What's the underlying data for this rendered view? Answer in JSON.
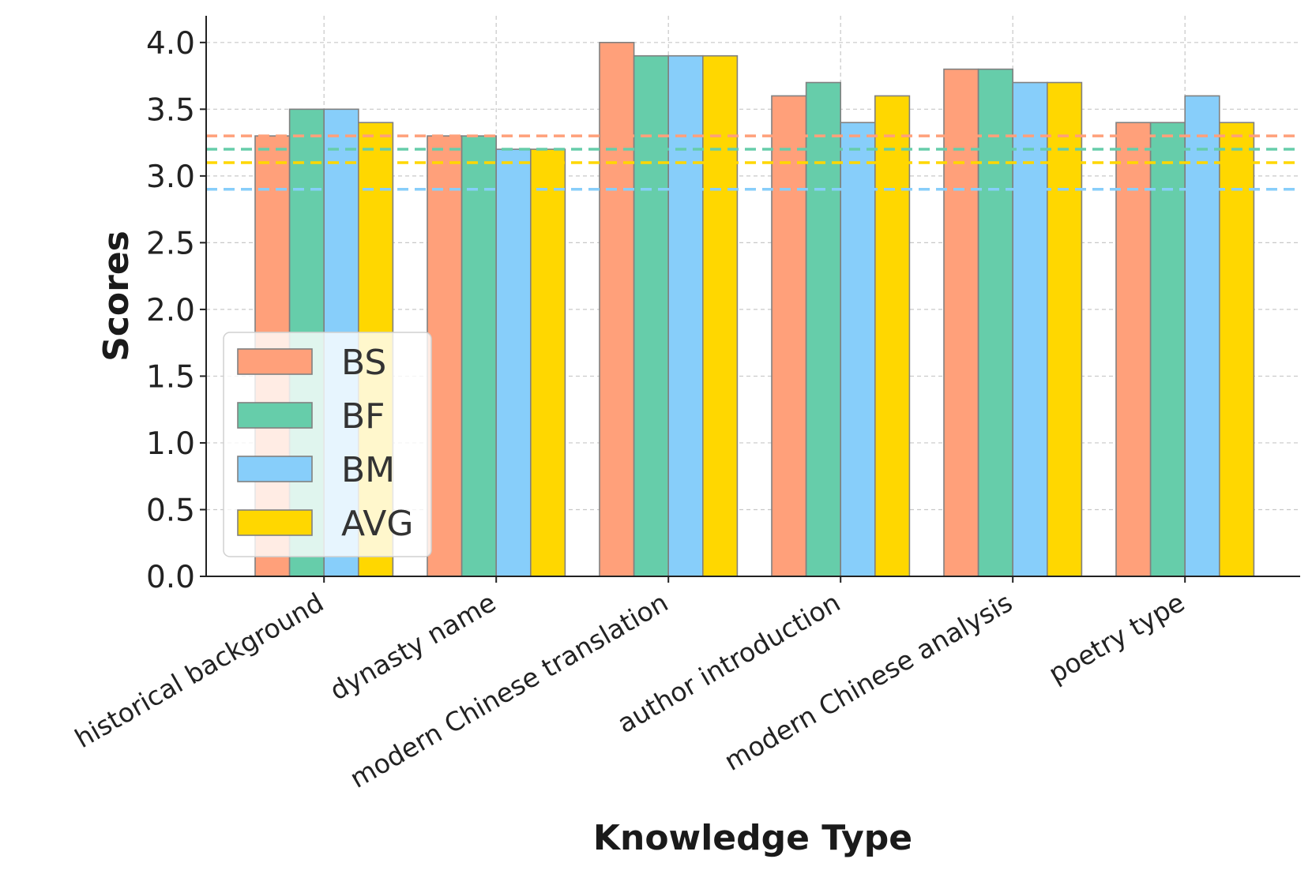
{
  "chart_data": {
    "type": "bar",
    "title": "",
    "xlabel": "Knowledge Type",
    "ylabel": "Scores",
    "categories": [
      "historical background",
      "dynasty name",
      "modern Chinese translation",
      "author introduction",
      "modern Chinese analysis",
      "poetry type"
    ],
    "series": [
      {
        "name": "BS",
        "color": "#FFA07A",
        "values": [
          3.3,
          3.3,
          4.0,
          3.6,
          3.8,
          3.4
        ],
        "average": 3.3
      },
      {
        "name": "BF",
        "color": "#66CDAA",
        "values": [
          3.5,
          3.3,
          3.9,
          3.7,
          3.8,
          3.4
        ],
        "average": 3.2
      },
      {
        "name": "BM",
        "color": "#87CEFA",
        "values": [
          3.5,
          3.2,
          3.9,
          3.4,
          3.7,
          3.6
        ],
        "average": 2.9
      },
      {
        "name": "AVG",
        "color": "#FFD700",
        "values": [
          3.4,
          3.2,
          3.9,
          3.6,
          3.7,
          3.4
        ],
        "average": 3.1
      }
    ],
    "ylim": [
      0,
      4.2
    ],
    "yticks": [
      "0.0",
      "0.5",
      "1.0",
      "1.5",
      "2.0",
      "2.5",
      "3.0",
      "3.5",
      "4.0"
    ],
    "grid": true,
    "legend_position": "lower-left",
    "average_lines": "dashed horizontal line per series"
  }
}
